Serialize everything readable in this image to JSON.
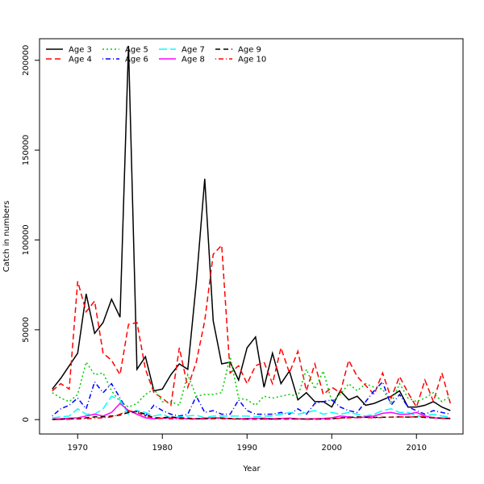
{
  "chart_data": {
    "type": "line",
    "title": "",
    "xlabel": "Year",
    "ylabel": "Catch in numbers",
    "xlim": [
      1965.5,
      2015.5
    ],
    "ylim": [
      -8000,
      212000
    ],
    "x_ticks": [
      1970,
      1980,
      1990,
      2000,
      2010
    ],
    "y_ticks": [
      0,
      50000,
      100000,
      150000,
      200000
    ],
    "grid": false,
    "legend_position": "top-left",
    "years": [
      1967,
      1968,
      1969,
      1970,
      1971,
      1972,
      1973,
      1974,
      1975,
      1976,
      1977,
      1978,
      1979,
      1980,
      1981,
      1982,
      1983,
      1984,
      1985,
      1986,
      1987,
      1988,
      1989,
      1990,
      1991,
      1992,
      1993,
      1994,
      1995,
      1996,
      1997,
      1998,
      1999,
      2000,
      2001,
      2002,
      2003,
      2004,
      2005,
      2006,
      2007,
      2008,
      2009,
      2010,
      2011,
      2012,
      2013,
      2014
    ],
    "series": [
      {
        "name": "Age 3",
        "color": "#000000",
        "dash": "solid",
        "values": [
          17000,
          23000,
          30000,
          37000,
          70000,
          48000,
          54000,
          67000,
          57000,
          208000,
          28000,
          35000,
          16000,
          17000,
          25000,
          31000,
          28000,
          76000,
          134000,
          55000,
          31000,
          32000,
          22000,
          40000,
          46000,
          18000,
          37000,
          20000,
          27000,
          11000,
          15000,
          10000,
          10000,
          7000,
          16000,
          11000,
          13000,
          8000,
          9000,
          11000,
          13000,
          16000,
          7000,
          7000,
          8000,
          10000,
          7000,
          5000
        ]
      },
      {
        "name": "Age 4",
        "color": "#ff0000",
        "dash": "long",
        "values": [
          16000,
          20000,
          17000,
          77000,
          60000,
          66000,
          37000,
          33000,
          25000,
          53000,
          54000,
          28000,
          15000,
          12000,
          8000,
          40000,
          18000,
          32000,
          55000,
          92000,
          97000,
          26000,
          30000,
          20000,
          30000,
          32000,
          20000,
          40000,
          26000,
          38000,
          16000,
          31000,
          14000,
          18000,
          15000,
          33000,
          24000,
          19000,
          14000,
          26000,
          12000,
          24000,
          15000,
          7000,
          22000,
          10000,
          26000,
          9000
        ]
      },
      {
        "name": "Age 5",
        "color": "#00cc00",
        "dash": "dotted",
        "values": [
          15000,
          12000,
          10000,
          14000,
          32000,
          25000,
          26000,
          16000,
          10000,
          7000,
          9000,
          14000,
          17000,
          10000,
          10000,
          8000,
          25000,
          13000,
          14000,
          14000,
          15000,
          35000,
          12000,
          11000,
          8000,
          13000,
          12000,
          13000,
          14000,
          13000,
          28000,
          17000,
          27000,
          10000,
          14000,
          20000,
          16000,
          20000,
          18000,
          17000,
          9000,
          20000,
          12000,
          10000,
          12000,
          15000,
          10000,
          13000
        ]
      },
      {
        "name": "Age 6",
        "color": "#0000ff",
        "dash": "dotdash",
        "values": [
          2000,
          6000,
          8000,
          12000,
          6000,
          21000,
          15000,
          20000,
          12000,
          4000,
          5000,
          2000,
          8000,
          5000,
          3000,
          2000,
          3000,
          13000,
          4000,
          5000,
          3000,
          3000,
          11000,
          5000,
          3000,
          3000,
          3000,
          4000,
          3000,
          6000,
          3000,
          9000,
          10000,
          11000,
          7000,
          5000,
          4000,
          10000,
          16000,
          21000,
          8000,
          14000,
          7000,
          5000,
          3000,
          5000,
          4000,
          3000
        ]
      },
      {
        "name": "Age 7",
        "color": "#00ffff",
        "dash": "longdash",
        "values": [
          1000,
          1500,
          2000,
          6000,
          3000,
          3000,
          6000,
          13000,
          11000,
          3000,
          5000,
          4000,
          2000,
          3000,
          1000,
          1500,
          2000,
          2500,
          1000,
          2000,
          2000,
          2000,
          2000,
          2000,
          1500,
          2000,
          2000,
          3000,
          4000,
          3000,
          4000,
          5000,
          3000,
          4000,
          3000,
          4000,
          3000,
          2000,
          3000,
          5000,
          6000,
          4000,
          4000,
          2000,
          2000,
          3000,
          2000,
          1500
        ]
      },
      {
        "name": "Age 8",
        "color": "#ff00ff",
        "dash": "solid",
        "values": [
          300,
          500,
          800,
          1000,
          2000,
          3000,
          2000,
          4000,
          9000,
          5000,
          3000,
          1000,
          500,
          800,
          1000,
          800,
          500,
          500,
          800,
          1000,
          1000,
          500,
          400,
          600,
          700,
          800,
          500,
          600,
          800,
          500,
          400,
          500,
          600,
          1000,
          2000,
          1500,
          1000,
          1500,
          2000,
          3500,
          4000,
          3000,
          3000,
          4000,
          2000,
          1000,
          600,
          500
        ]
      },
      {
        "name": "Age 9",
        "color": "#000000",
        "dash": "medium",
        "values": [
          100,
          200,
          400,
          500,
          1000,
          1500,
          1500,
          2000,
          2500,
          4000,
          4500,
          3000,
          1000,
          1000,
          1500,
          1000,
          800,
          500,
          500,
          700,
          800,
          600,
          400,
          300,
          300,
          400,
          300,
          400,
          300,
          400,
          300,
          300,
          300,
          400,
          1000,
          1200,
          1500,
          1300,
          1200,
          1300,
          1400,
          1500,
          1400,
          1500,
          1200,
          1000,
          800,
          700
        ]
      },
      {
        "name": "Age 10",
        "color": "#ff0000",
        "dash": "dotdash",
        "values": [
          50,
          100,
          200,
          300,
          500,
          800,
          1000,
          1500,
          3000,
          5000,
          4000,
          2000,
          800,
          600,
          500,
          400,
          300,
          300,
          400,
          500,
          500,
          400,
          300,
          200,
          200,
          300,
          200,
          300,
          200,
          300,
          200,
          200,
          300,
          300,
          800,
          1000,
          1200,
          1100,
          1000,
          1200,
          1300,
          1500,
          1400,
          1600,
          1500,
          1200,
          900,
          700
        ]
      }
    ]
  }
}
